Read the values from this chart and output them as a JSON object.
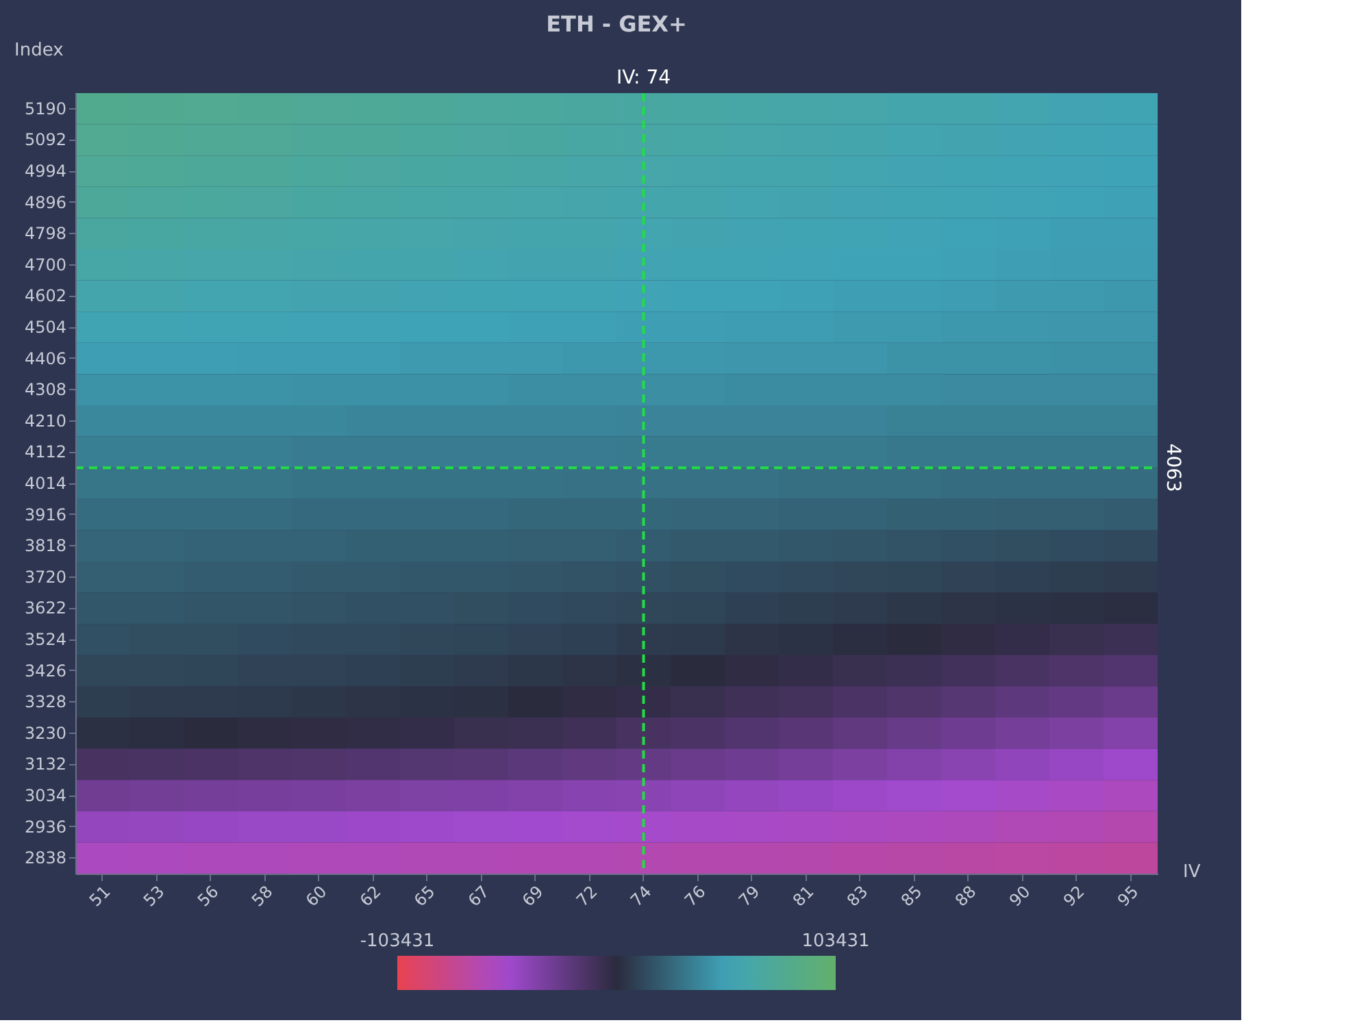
{
  "chart_data": {
    "type": "heatmap",
    "title": "ETH - GEX+",
    "xlabel": "IV",
    "ylabel": "Index",
    "categories": [
      "51",
      "53",
      "56",
      "58",
      "60",
      "62",
      "65",
      "67",
      "69",
      "72",
      "74",
      "76",
      "79",
      "81",
      "83",
      "85",
      "88",
      "90",
      "92",
      "95"
    ],
    "y_categories": [
      "5190",
      "5092",
      "4994",
      "4896",
      "4798",
      "4700",
      "4602",
      "4504",
      "4406",
      "4308",
      "4210",
      "4112",
      "4014",
      "3916",
      "3818",
      "3720",
      "3622",
      "3524",
      "3426",
      "3328",
      "3230",
      "3132",
      "3034",
      "2936",
      "2838"
    ],
    "cells": [
      [
        80000,
        79000,
        78000,
        77000,
        75000,
        74000,
        72000,
        71000,
        70000,
        68000,
        67000,
        66000,
        64000,
        63000,
        62000,
        60000,
        59000,
        58000,
        56000,
        55000
      ],
      [
        78000,
        77000,
        76000,
        75000,
        73000,
        72000,
        70000,
        69000,
        68000,
        66000,
        65000,
        64000,
        62000,
        61000,
        60000,
        58000,
        57000,
        56000,
        54000,
        53000
      ],
      [
        75000,
        74000,
        73000,
        72000,
        70000,
        69000,
        67000,
        66000,
        65000,
        63000,
        62000,
        61000,
        60000,
        59000,
        58000,
        56000,
        55000,
        54000,
        53000,
        52000
      ],
      [
        72000,
        71000,
        70000,
        69000,
        67000,
        66000,
        64000,
        63000,
        62000,
        61000,
        60000,
        59000,
        58000,
        57000,
        56000,
        55000,
        54000,
        53000,
        52000,
        51000
      ],
      [
        68000,
        67000,
        66000,
        65000,
        64000,
        63000,
        62000,
        61000,
        60000,
        59000,
        58000,
        57000,
        56000,
        55000,
        54000,
        53000,
        52000,
        51000,
        50000,
        50000
      ],
      [
        64000,
        63000,
        62000,
        62000,
        61000,
        60000,
        59000,
        58000,
        57000,
        57000,
        56000,
        55000,
        54000,
        53000,
        52000,
        52000,
        51000,
        50000,
        49000,
        49000
      ],
      [
        60000,
        59000,
        58000,
        58000,
        57000,
        57000,
        56000,
        55000,
        54000,
        54000,
        53000,
        52000,
        52000,
        51000,
        50000,
        50000,
        49000,
        48000,
        48000,
        47000
      ],
      [
        55000,
        55000,
        54000,
        54000,
        53000,
        53000,
        52000,
        52000,
        51000,
        51000,
        50000,
        50000,
        49000,
        49000,
        48000,
        48000,
        47000,
        47000,
        46000,
        46000
      ],
      [
        50000,
        50000,
        50000,
        49000,
        49000,
        49000,
        48000,
        48000,
        48000,
        47000,
        47000,
        47000,
        46000,
        46000,
        46000,
        45000,
        45000,
        45000,
        44000,
        44000
      ],
      [
        45000,
        45000,
        45000,
        45000,
        44000,
        44000,
        44000,
        44000,
        43000,
        43000,
        43000,
        43000,
        42000,
        42000,
        42000,
        42000,
        41000,
        41000,
        41000,
        41000
      ],
      [
        40000,
        40000,
        40000,
        40000,
        40000,
        39000,
        39000,
        39000,
        39000,
        39000,
        38000,
        38000,
        38000,
        38000,
        38000,
        37000,
        37000,
        37000,
        37000,
        37000
      ],
      [
        36000,
        36000,
        36000,
        36000,
        35000,
        35000,
        35000,
        35000,
        35000,
        35000,
        34000,
        34000,
        34000,
        34000,
        34000,
        33000,
        33000,
        33000,
        33000,
        33000
      ],
      [
        32000,
        32000,
        32000,
        32000,
        31000,
        31000,
        31000,
        31000,
        31000,
        30000,
        30000,
        30000,
        30000,
        29000,
        29000,
        29000,
        28000,
        28000,
        28000,
        28000
      ],
      [
        28000,
        28000,
        28000,
        28000,
        27000,
        27000,
        27000,
        27000,
        26000,
        26000,
        26000,
        25000,
        25000,
        24000,
        24000,
        23000,
        23000,
        22000,
        22000,
        21000
      ],
      [
        25000,
        25000,
        24000,
        24000,
        24000,
        23000,
        23000,
        23000,
        22000,
        22000,
        21000,
        20000,
        20000,
        19000,
        18000,
        17000,
        16000,
        15000,
        14000,
        13000
      ],
      [
        22000,
        22000,
        21000,
        21000,
        20000,
        20000,
        19000,
        19000,
        18000,
        17000,
        16000,
        15000,
        14000,
        13000,
        12000,
        11000,
        10000,
        9000,
        8000,
        7000
      ],
      [
        19000,
        19000,
        18000,
        18000,
        17000,
        16000,
        16000,
        15000,
        14000,
        13000,
        12000,
        11000,
        9000,
        8000,
        7000,
        5000,
        4000,
        3000,
        2000,
        1000
      ],
      [
        16000,
        15000,
        15000,
        14000,
        13000,
        13000,
        12000,
        11000,
        10000,
        9000,
        7000,
        6000,
        4000,
        3000,
        1000,
        0,
        -2000,
        -4000,
        -6000,
        -8000
      ],
      [
        12000,
        12000,
        11000,
        10000,
        10000,
        9000,
        8000,
        7000,
        5000,
        4000,
        2000,
        0,
        -2000,
        -4000,
        -6000,
        -8000,
        -10000,
        -13000,
        -15000,
        -17000
      ],
      [
        8000,
        7000,
        7000,
        6000,
        5000,
        4000,
        3000,
        2000,
        0,
        -2000,
        -4000,
        -6000,
        -9000,
        -11000,
        -14000,
        -16000,
        -19000,
        -22000,
        -24000,
        -27000
      ],
      [
        2000,
        1000,
        0,
        -1000,
        -2000,
        -3000,
        -4000,
        -6000,
        -7000,
        -9000,
        -12000,
        -14000,
        -17000,
        -20000,
        -23000,
        -26000,
        -29000,
        -32000,
        -35000,
        -38000
      ],
      [
        -12000,
        -13000,
        -14000,
        -15000,
        -16000,
        -17000,
        -18000,
        -19000,
        -21000,
        -23000,
        -25000,
        -27000,
        -29000,
        -32000,
        -35000,
        -38000,
        -41000,
        -44000,
        -47000,
        -50000
      ],
      [
        -30000,
        -31000,
        -32000,
        -33000,
        -34000,
        -35000,
        -36000,
        -37000,
        -38000,
        -40000,
        -41000,
        -43000,
        -45000,
        -47000,
        -49000,
        -51000,
        -53000,
        -55000,
        -57000,
        -59000
      ],
      [
        -45000,
        -46000,
        -47000,
        -48000,
        -48000,
        -49000,
        -50000,
        -51000,
        -52000,
        -53000,
        -54000,
        -55000,
        -56000,
        -57000,
        -58000,
        -59000,
        -60000,
        -62000,
        -63000,
        -65000
      ],
      [
        -58000,
        -59000,
        -60000,
        -60000,
        -61000,
        -61000,
        -62000,
        -62000,
        -63000,
        -63000,
        -64000,
        -65000,
        -65000,
        -66000,
        -67000,
        -68000,
        -69000,
        -70000,
        -71000,
        -72000
      ]
    ],
    "clim": [
      -103431,
      103431
    ],
    "cticks": [
      -103431,
      103431
    ],
    "ref_lines": [
      {
        "axis": "x",
        "value": "74",
        "label": "IV: 74",
        "color": "#22dd44",
        "line_style": "dashed"
      }
    ],
    "annotations": [
      "4063"
    ],
    "grid": false
  }
}
